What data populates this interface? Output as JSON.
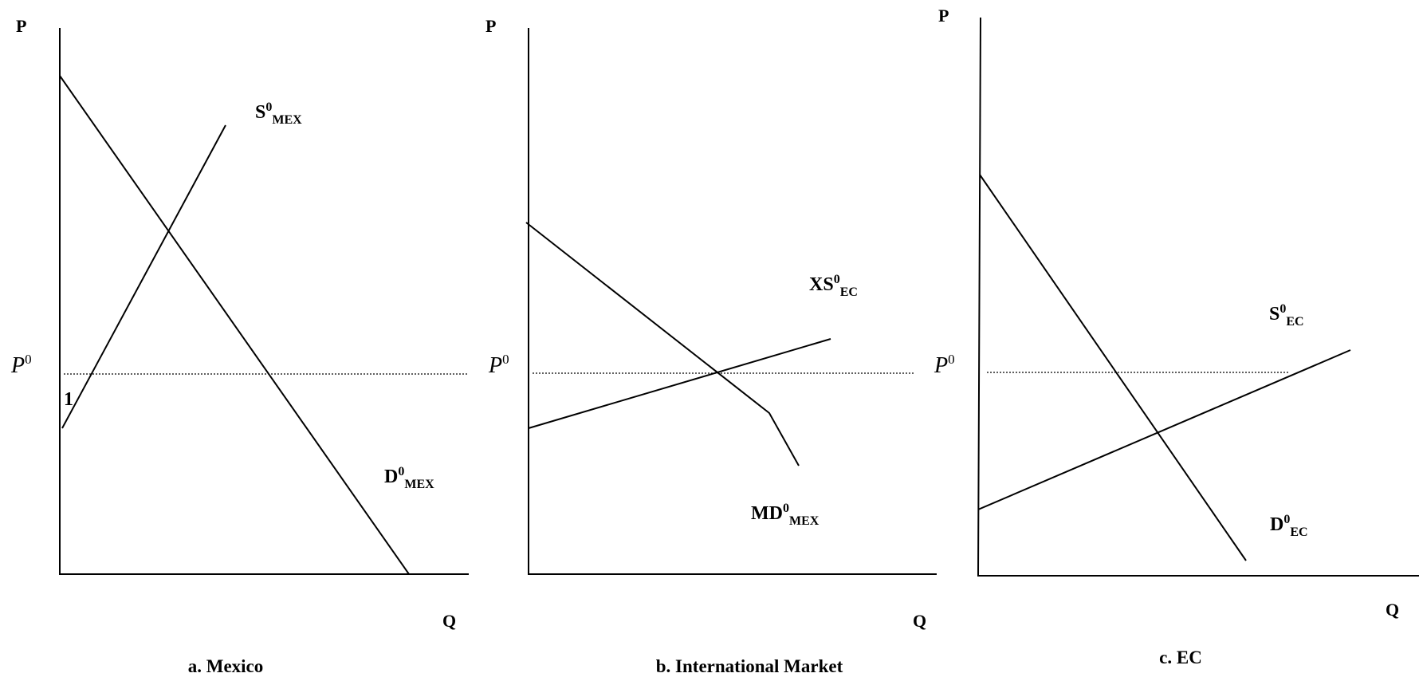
{
  "panels": [
    {
      "caption": "a. Mexico",
      "axis_y": "P",
      "axis_x": "Q",
      "price_label": "P",
      "price_sup": "0",
      "point_label": "1",
      "supply": {
        "main": "S",
        "sup": "0",
        "sub": "MEX"
      },
      "demand": {
        "main": "D",
        "sup": "0",
        "sub": "MEX"
      }
    },
    {
      "caption": "b.  International Market",
      "axis_y": "P",
      "axis_x": "Q",
      "price_label": "P",
      "price_sup": "0",
      "supply": {
        "main": "XS",
        "sup": "0",
        "sub": "EC"
      },
      "demand": {
        "main": "MD",
        "sup": "0",
        "sub": "MEX"
      }
    },
    {
      "caption": "c. EC",
      "axis_y": "P",
      "axis_x": "Q",
      "price_label": "P",
      "price_sup": "0",
      "supply": {
        "main": "S",
        "sup": "0",
        "sub": "EC"
      },
      "demand": {
        "main": "D",
        "sup": "0",
        "sub": "EC"
      }
    }
  ]
}
